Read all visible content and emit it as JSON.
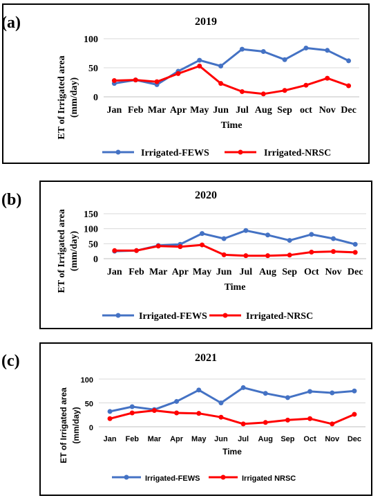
{
  "chart_data": [
    {
      "panel_label": "(a)",
      "type": "line",
      "title": "2019",
      "xlabel": "Time",
      "ylabel": "ET of Irrigated area (mm/day)",
      "categories": [
        "Jan",
        "Feb",
        "Mar",
        "Apr",
        "May",
        "Jun",
        "Jul",
        "Aug",
        "Sep",
        "oct",
        "Nov",
        "Dec"
      ],
      "yticks": [
        0,
        50,
        100
      ],
      "ylim": [
        0,
        100
      ],
      "grid": true,
      "legend_position": "bottom",
      "series": [
        {
          "name": "Irrigated-FEWS",
          "color": "#4472c4",
          "values": [
            23,
            29,
            21,
            44,
            63,
            53,
            82,
            78,
            64,
            84,
            80,
            62
          ]
        },
        {
          "name": "Irrigated-NRSC",
          "color": "#ff0000",
          "values": [
            28,
            29,
            26,
            40,
            53,
            23,
            9,
            5,
            11,
            20,
            32,
            19
          ]
        }
      ]
    },
    {
      "panel_label": "(b)",
      "type": "line",
      "title": "2020",
      "xlabel": "Time",
      "ylabel": "ET of Irrigated area (mm/day)",
      "categories": [
        "Jan",
        "Feb",
        "Mar",
        "Apr",
        "May",
        "Jun",
        "Jul",
        "Aug",
        "Sep",
        "Oct",
        "Nov",
        "Dec"
      ],
      "yticks": [
        0,
        50,
        100,
        150
      ],
      "ylim": [
        0,
        150
      ],
      "grid": true,
      "legend_position": "bottom",
      "series": [
        {
          "name": "Irrigated-FEWS",
          "color": "#4472c4",
          "values": [
            25,
            27,
            44,
            48,
            84,
            67,
            94,
            79,
            61,
            81,
            67,
            48
          ]
        },
        {
          "name": "Irrigated-NRSC",
          "color": "#ff0000",
          "values": [
            27,
            27,
            42,
            40,
            46,
            13,
            10,
            10,
            12,
            22,
            24,
            21
          ]
        }
      ]
    },
    {
      "panel_label": "(c)",
      "type": "line",
      "title": "2021",
      "xlabel": "Time",
      "ylabel": "ET of Irrigated area (mm/day)",
      "categories": [
        "Jan",
        "Feb",
        "Mar",
        "Apr",
        "May",
        "Jun",
        "Jul",
        "Aug",
        "Sep",
        "Oct",
        "Nov",
        "Dec"
      ],
      "yticks": [
        0,
        50,
        100
      ],
      "ylim": [
        0,
        100
      ],
      "grid": true,
      "legend_position": "bottom",
      "series": [
        {
          "name": "Irrigated-FEWS",
          "color": "#4472c4",
          "values": [
            32,
            42,
            36,
            53,
            77,
            50,
            82,
            70,
            61,
            74,
            71,
            75
          ]
        },
        {
          "name": "Irrigated NRSC",
          "color": "#ff0000",
          "values": [
            17,
            29,
            34,
            29,
            28,
            20,
            6,
            9,
            14,
            17,
            6,
            26
          ]
        }
      ]
    }
  ]
}
